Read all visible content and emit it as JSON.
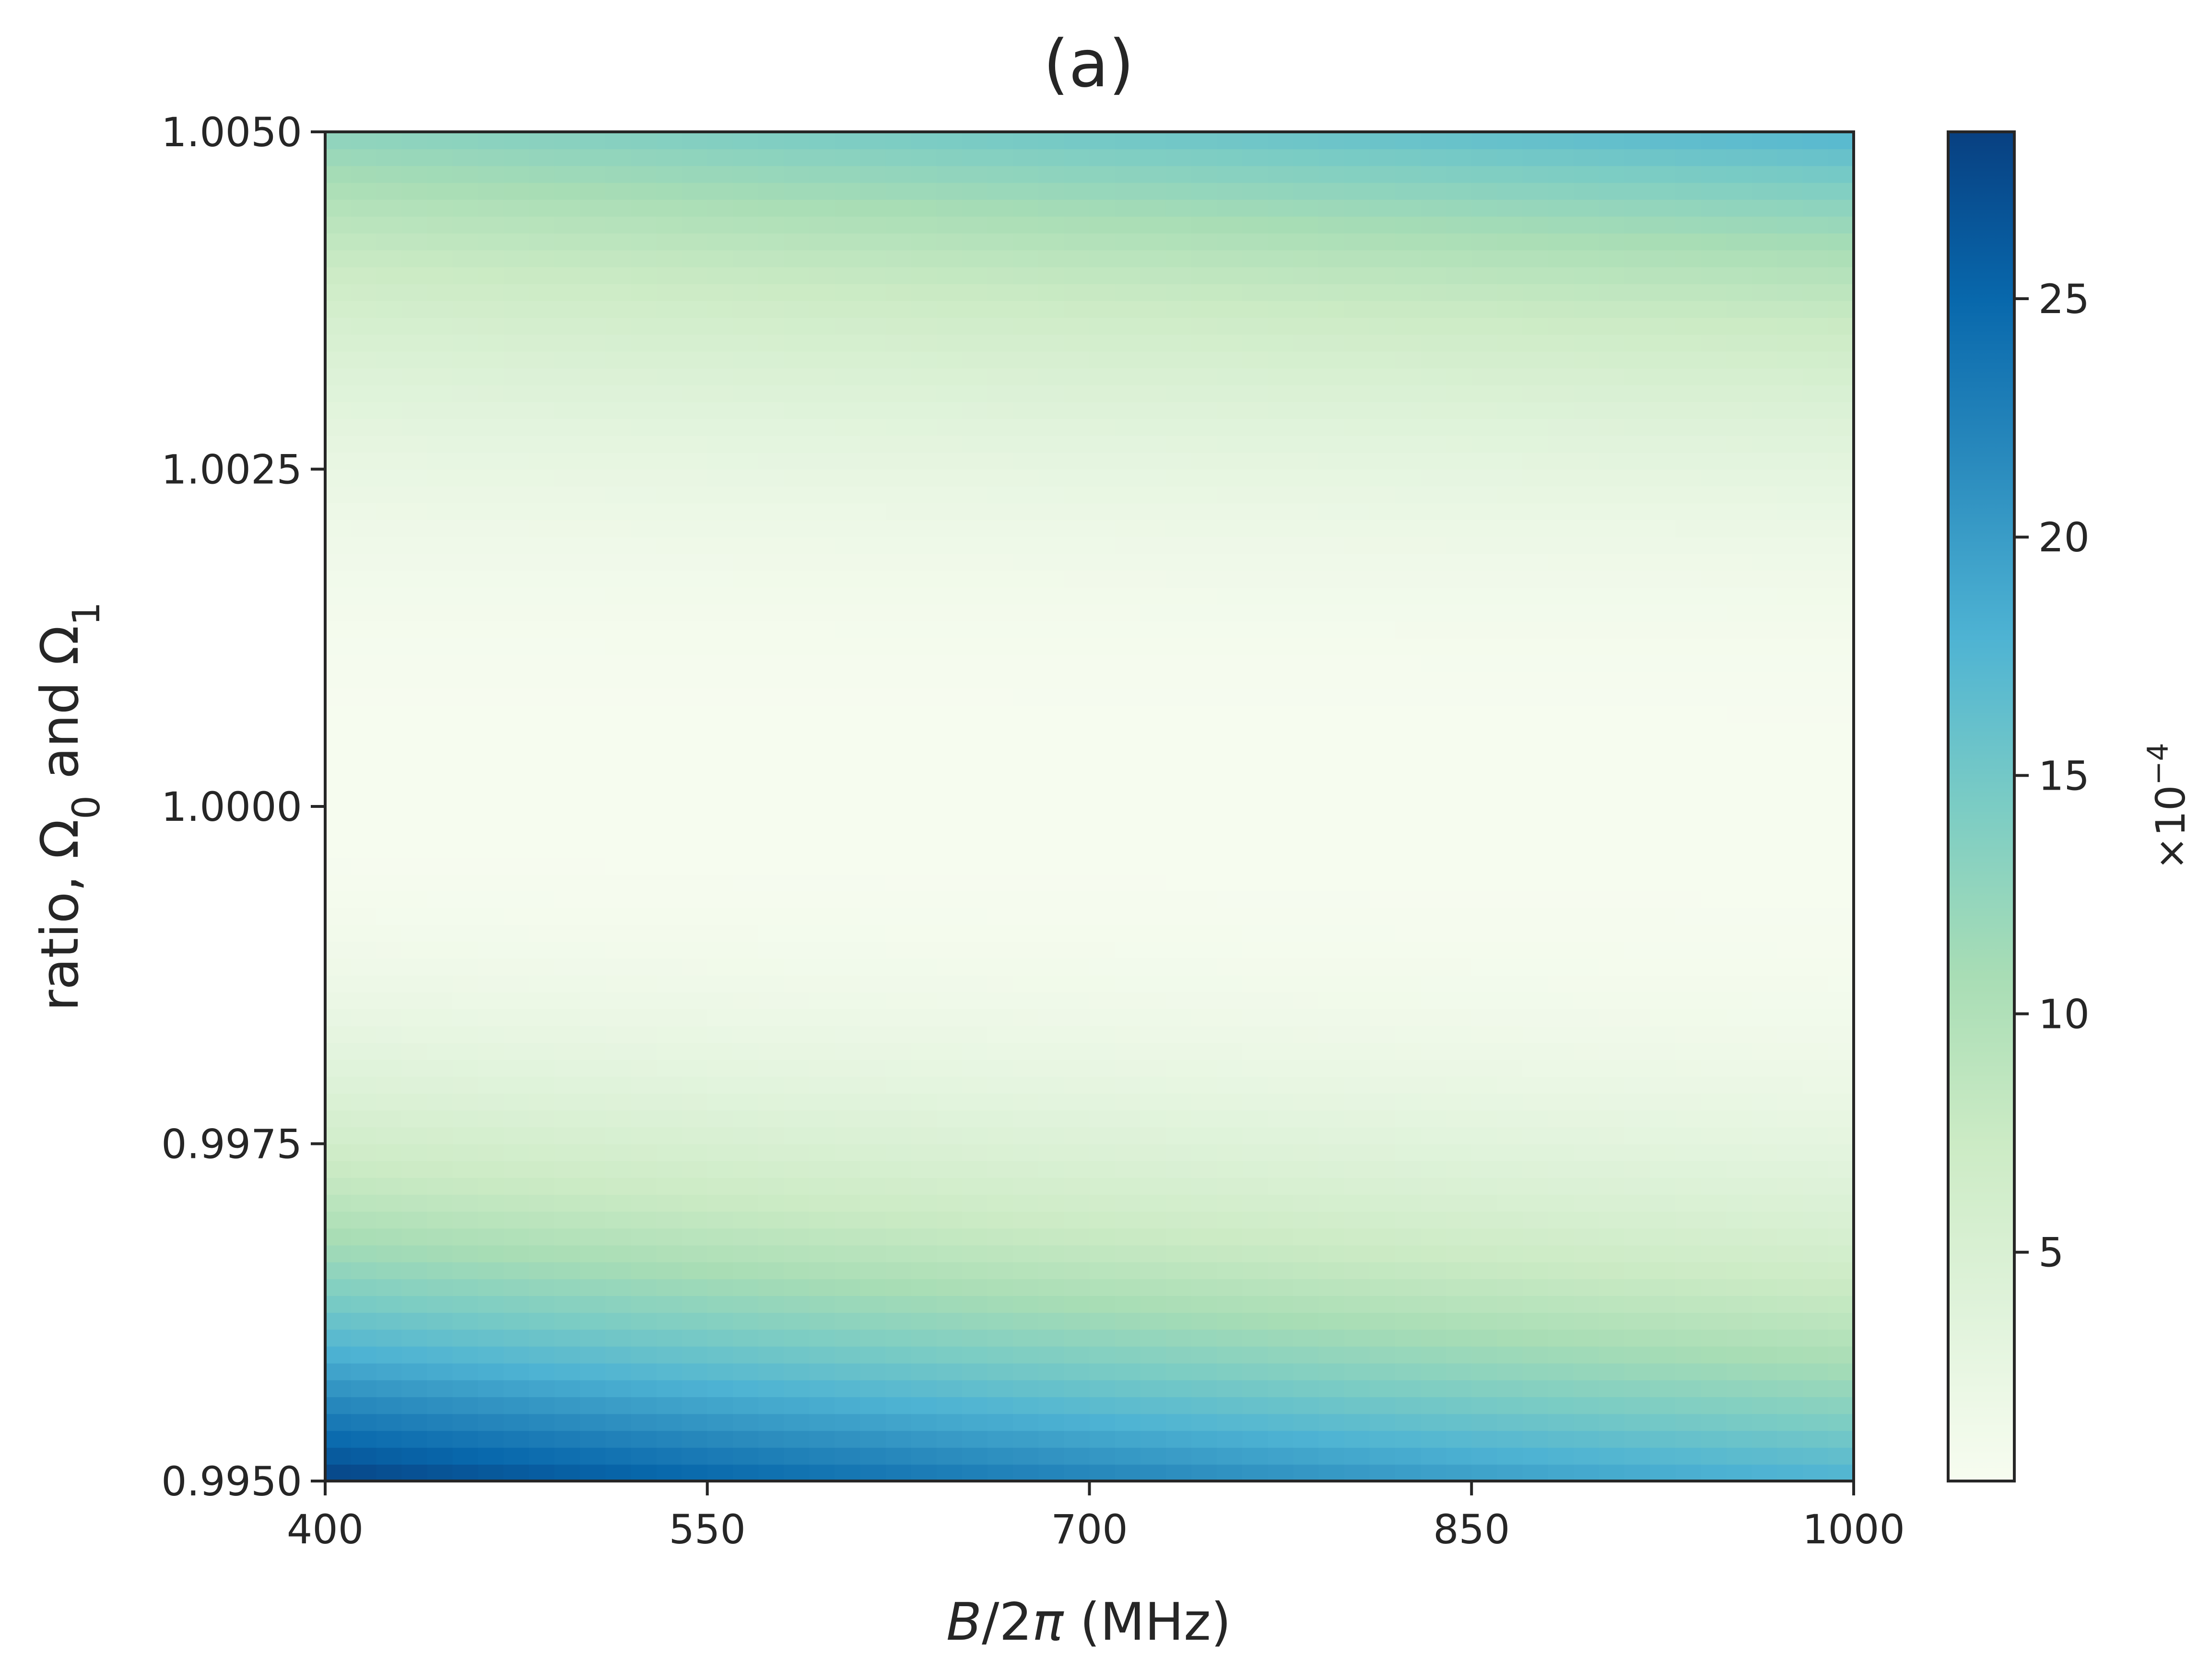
{
  "chart_data": {
    "type": "heatmap",
    "title": "(a)",
    "xlabel": {
      "prefix_italic": "B",
      "middle": "/2",
      "italic_pi": "π",
      "suffix": " (MHz)"
    },
    "ylabel": {
      "part1": "ratio, Ω",
      "sub1": "0",
      "part2": " and Ω",
      "sub2": "1"
    },
    "xlim": [
      400,
      1000
    ],
    "ylim": [
      0.995,
      1.005
    ],
    "x_ticks": [
      400,
      550,
      700,
      850,
      1000
    ],
    "x_tick_labels": [
      "400",
      "550",
      "700",
      "850",
      "1000"
    ],
    "y_ticks": [
      0.995,
      0.9975,
      1.0,
      1.0025,
      1.005
    ],
    "y_tick_labels": [
      "0.9950",
      "0.9975",
      "1.0000",
      "1.0025",
      "1.0050"
    ],
    "colormap": "GnBu",
    "colormap_stops": [
      "#f7fcf0",
      "#e0f3db",
      "#ccebc5",
      "#a8ddb5",
      "#7bccc4",
      "#4eb3d3",
      "#2b8cbe",
      "#0868ac",
      "#084081"
    ],
    "colorbar": {
      "range": [
        0.2,
        28.5
      ],
      "ticks": [
        5,
        10,
        15,
        20,
        25
      ],
      "tick_labels": [
        "5",
        "10",
        "15",
        "20",
        "25"
      ],
      "label_base": "×10",
      "label_exp": "−4"
    },
    "grid": false,
    "z_samples": [
      {
        "x": 400,
        "y": 0.995,
        "z": 28.5
      },
      {
        "x": 400,
        "y": 1.005,
        "z": 13
      },
      {
        "x": 700,
        "y": 0.995,
        "z": 19
      },
      {
        "x": 700,
        "y": 1.005,
        "z": 15
      },
      {
        "x": 1000,
        "y": 0.995,
        "z": 18
      },
      {
        "x": 1000,
        "y": 1.005,
        "z": 17.5
      },
      {
        "x": 700,
        "y": 1.0,
        "z": 0.3
      },
      {
        "x": 400,
        "y": 0.99725,
        "z": 9
      },
      {
        "x": 400,
        "y": 1.0042,
        "z": 9
      },
      {
        "x": 1000,
        "y": 0.99725,
        "z": 8
      },
      {
        "x": 1000,
        "y": 1.0042,
        "z": 8.5
      }
    ]
  }
}
